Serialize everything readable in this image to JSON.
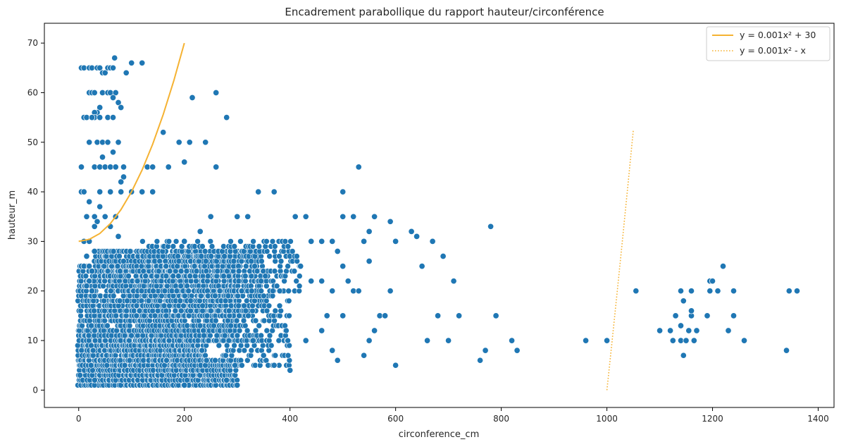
{
  "chart_data": {
    "type": "scatter",
    "title": "Encadrement parabollique du rapport hauteur/circonférence",
    "xlabel": "circonference_cm",
    "ylabel": "hauteur_m",
    "xlim": [
      -65,
      1430
    ],
    "ylim": [
      -3.5,
      74
    ],
    "xticks": [
      0,
      200,
      400,
      600,
      800,
      1000,
      1200,
      1400
    ],
    "yticks": [
      0,
      10,
      20,
      30,
      40,
      50,
      60,
      70
    ],
    "grid": false,
    "legend_position": "top-right",
    "colors": {
      "points": "#1f77b4",
      "curve1": "#f5b232",
      "curve2": "#f5b232",
      "axis": "#000000"
    },
    "dense_regions": [
      {
        "xmin": 0,
        "xmax": 240,
        "ymin": 1,
        "ymax": 12,
        "density": 0.95
      },
      {
        "xmin": 0,
        "xmax": 300,
        "ymin": 1,
        "ymax": 6,
        "density": 0.8
      },
      {
        "xmin": 30,
        "xmax": 300,
        "ymin": 10,
        "ymax": 28,
        "density": 0.75
      },
      {
        "xmin": 50,
        "xmax": 360,
        "ymin": 15,
        "ymax": 28,
        "density": 0.5
      },
      {
        "xmin": 120,
        "xmax": 420,
        "ymin": 20,
        "ymax": 30,
        "density": 0.3
      },
      {
        "xmin": 0,
        "xmax": 30,
        "ymin": 1,
        "ymax": 25,
        "density": 0.6
      },
      {
        "xmin": 230,
        "xmax": 400,
        "ymin": 5,
        "ymax": 20,
        "density": 0.35
      }
    ],
    "series": [
      {
        "name": "scatter",
        "points": [
          [
            5,
            65
          ],
          [
            10,
            65
          ],
          [
            20,
            65
          ],
          [
            25,
            65
          ],
          [
            35,
            65
          ],
          [
            40,
            65
          ],
          [
            45,
            64
          ],
          [
            50,
            64
          ],
          [
            55,
            65
          ],
          [
            60,
            65
          ],
          [
            65,
            65
          ],
          [
            68,
            67
          ],
          [
            20,
            60
          ],
          [
            25,
            60
          ],
          [
            30,
            60
          ],
          [
            45,
            60
          ],
          [
            55,
            60
          ],
          [
            60,
            60
          ],
          [
            70,
            60
          ],
          [
            65,
            59
          ],
          [
            75,
            58
          ],
          [
            80,
            57
          ],
          [
            40,
            57
          ],
          [
            35,
            56
          ],
          [
            30,
            56
          ],
          [
            30,
            55
          ],
          [
            40,
            55
          ],
          [
            55,
            55
          ],
          [
            65,
            55
          ],
          [
            10,
            55
          ],
          [
            15,
            55
          ],
          [
            25,
            55
          ],
          [
            20,
            50
          ],
          [
            35,
            50
          ],
          [
            45,
            50
          ],
          [
            55,
            50
          ],
          [
            75,
            50
          ],
          [
            65,
            48
          ],
          [
            45,
            47
          ],
          [
            5,
            45
          ],
          [
            30,
            45
          ],
          [
            40,
            45
          ],
          [
            50,
            45
          ],
          [
            60,
            45
          ],
          [
            70,
            45
          ],
          [
            85,
            45
          ],
          [
            85,
            43
          ],
          [
            80,
            42
          ],
          [
            40,
            40
          ],
          [
            60,
            40
          ],
          [
            80,
            40
          ],
          [
            100,
            40
          ],
          [
            120,
            40
          ],
          [
            140,
            40
          ],
          [
            5,
            40
          ],
          [
            10,
            40
          ],
          [
            20,
            38
          ],
          [
            40,
            37
          ],
          [
            50,
            35
          ],
          [
            15,
            35
          ],
          [
            30,
            35
          ],
          [
            70,
            35
          ],
          [
            35,
            34
          ],
          [
            30,
            33
          ],
          [
            60,
            33
          ],
          [
            75,
            31
          ],
          [
            90,
            64
          ],
          [
            100,
            66
          ],
          [
            120,
            66
          ],
          [
            130,
            45
          ],
          [
            140,
            45
          ],
          [
            160,
            52
          ],
          [
            170,
            45
          ],
          [
            190,
            50
          ],
          [
            200,
            46
          ],
          [
            210,
            50
          ],
          [
            215,
            59
          ],
          [
            260,
            60
          ],
          [
            280,
            55
          ],
          [
            260,
            45
          ],
          [
            240,
            50
          ],
          [
            10,
            30
          ],
          [
            20,
            30
          ],
          [
            30,
            28
          ],
          [
            15,
            27
          ],
          [
            5,
            25
          ],
          [
            10,
            25
          ],
          [
            20,
            25
          ],
          [
            25,
            24
          ],
          [
            20,
            22
          ],
          [
            15,
            21
          ],
          [
            25,
            20
          ],
          [
            200,
            30
          ],
          [
            230,
            32
          ],
          [
            250,
            35
          ],
          [
            300,
            35
          ],
          [
            320,
            35
          ],
          [
            340,
            40
          ],
          [
            370,
            40
          ],
          [
            410,
            35
          ],
          [
            430,
            35
          ],
          [
            440,
            30
          ],
          [
            460,
            30
          ],
          [
            480,
            30
          ],
          [
            490,
            28
          ],
          [
            500,
            35
          ],
          [
            520,
            35
          ],
          [
            540,
            30
          ],
          [
            550,
            32
          ],
          [
            560,
            35
          ],
          [
            590,
            34
          ],
          [
            600,
            30
          ],
          [
            630,
            32
          ],
          [
            640,
            31
          ],
          [
            670,
            30
          ],
          [
            690,
            27
          ],
          [
            530,
            45
          ],
          [
            500,
            40
          ],
          [
            420,
            25
          ],
          [
            440,
            22
          ],
          [
            460,
            22
          ],
          [
            480,
            20
          ],
          [
            500,
            25
          ],
          [
            510,
            22
          ],
          [
            520,
            20
          ],
          [
            530,
            20
          ],
          [
            550,
            26
          ],
          [
            590,
            20
          ],
          [
            600,
            30
          ],
          [
            650,
            25
          ],
          [
            710,
            22
          ],
          [
            680,
            15
          ],
          [
            720,
            15
          ],
          [
            790,
            15
          ],
          [
            780,
            33
          ],
          [
            820,
            10
          ],
          [
            830,
            8
          ],
          [
            760,
            6
          ],
          [
            770,
            8
          ],
          [
            700,
            10
          ],
          [
            660,
            10
          ],
          [
            600,
            5
          ],
          [
            540,
            7
          ],
          [
            550,
            10
          ],
          [
            560,
            12
          ],
          [
            570,
            15
          ],
          [
            580,
            15
          ],
          [
            500,
            15
          ],
          [
            470,
            15
          ],
          [
            460,
            12
          ],
          [
            430,
            10
          ],
          [
            480,
            8
          ],
          [
            490,
            6
          ],
          [
            400,
            4
          ],
          [
            330,
            10
          ],
          [
            350,
            7
          ],
          [
            370,
            5
          ],
          [
            300,
            1
          ],
          [
            280,
            2
          ],
          [
            200,
            1
          ],
          [
            960,
            10
          ],
          [
            1000,
            10
          ],
          [
            1055,
            20
          ],
          [
            1100,
            12
          ],
          [
            1120,
            12
          ],
          [
            1125,
            10
          ],
          [
            1130,
            15
          ],
          [
            1140,
            13
          ],
          [
            1140,
            10
          ],
          [
            1145,
            18
          ],
          [
            1140,
            20
          ],
          [
            1145,
            7
          ],
          [
            1150,
            10
          ],
          [
            1155,
            12
          ],
          [
            1160,
            15
          ],
          [
            1160,
            16
          ],
          [
            1165,
            10
          ],
          [
            1170,
            12
          ],
          [
            1160,
            20
          ],
          [
            1190,
            15
          ],
          [
            1195,
            20
          ],
          [
            1195,
            22
          ],
          [
            1200,
            22
          ],
          [
            1210,
            20
          ],
          [
            1220,
            25
          ],
          [
            1230,
            12
          ],
          [
            1240,
            15
          ],
          [
            1240,
            20
          ],
          [
            1260,
            10
          ],
          [
            1340,
            8
          ],
          [
            1345,
            20
          ],
          [
            1360,
            20
          ]
        ]
      },
      {
        "name": "y = 0.001x² + 30",
        "type": "line",
        "style": "solid",
        "x": [
          0,
          20,
          40,
          60,
          80,
          100,
          120,
          140,
          160,
          180,
          200
        ],
        "y": [
          30,
          30.4,
          31.6,
          33.6,
          36.4,
          40,
          44.4,
          49.6,
          55.6,
          62.4,
          70
        ]
      },
      {
        "name": "y = 0.001x² - x",
        "type": "line",
        "style": "dotted",
        "x": [
          1000,
          1010,
          1020,
          1030,
          1040,
          1050
        ],
        "y": [
          0,
          10.1,
          20.4,
          30.9,
          41.6,
          52.5
        ]
      }
    ]
  }
}
